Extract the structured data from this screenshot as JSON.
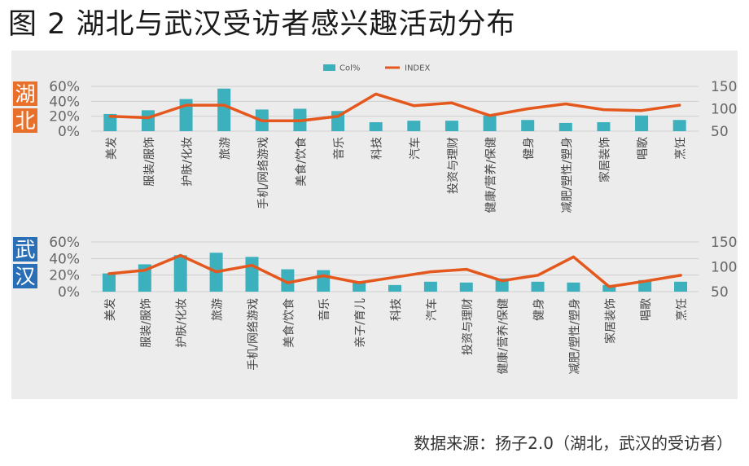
{
  "figure": {
    "title": "图 2 湖北与武汉受访者感兴趣活动分布",
    "source": "数据来源：扬子2.0（湖北，武汉的受访者）"
  },
  "colors": {
    "bar": "#3cb1bd",
    "line": "#e4581e",
    "hubei_tag": "#e8702a",
    "wuhan_tag": "#2a6fb5",
    "panel_bg": "#ececec"
  },
  "chart_data": [
    {
      "type": "bar",
      "region_label": "湖北",
      "legend": {
        "position": "top-center",
        "items": [
          "Col%",
          "INDEX"
        ]
      },
      "categories": [
        "美发",
        "服装/服饰",
        "护肤/化妆",
        "旅游",
        "手机/网络游戏",
        "美食/饮食",
        "音乐",
        "科技",
        "汽车",
        "投资与理财",
        "健康/营养/保健",
        "健身",
        "减肥/塑性/塑身",
        "家居装饰",
        "唱歌",
        "烹饪"
      ],
      "series": [
        {
          "name": "Col%",
          "type": "bar",
          "axis": "left",
          "values": [
            23,
            28,
            43,
            57,
            29,
            30,
            27,
            12,
            14,
            14,
            21,
            15,
            11,
            12,
            21,
            15
          ]
        },
        {
          "name": "INDEX",
          "type": "line",
          "axis": "right",
          "values": [
            83,
            80,
            108,
            108,
            73,
            73,
            83,
            133,
            107,
            113,
            85,
            100,
            111,
            98,
            96,
            108
          ]
        }
      ],
      "ylim": [
        0,
        60
      ],
      "y_ticks": [
        "0%",
        "20%",
        "40%",
        "60%"
      ],
      "y2lim": [
        50,
        150
      ],
      "y2_ticks": [
        "50",
        "100",
        "150"
      ],
      "grid": true
    },
    {
      "type": "bar",
      "region_label": "武汉",
      "categories": [
        "美发",
        "服装/服饰",
        "护肤/化妆",
        "旅游",
        "手机/网络游戏",
        "美食/饮食",
        "音乐",
        "亲子/育儿",
        "科技",
        "汽车",
        "投资与理财",
        "健康/营养/保健",
        "健身",
        "减肥/塑性/塑身",
        "家居装饰",
        "唱歌",
        "烹饪"
      ],
      "series": [
        {
          "name": "Col%",
          "type": "bar",
          "axis": "left",
          "values": [
            22,
            33,
            44,
            47,
            42,
            27,
            26,
            11,
            8,
            12,
            11,
            16,
            12,
            11,
            8,
            14,
            12
          ]
        },
        {
          "name": "INDEX",
          "type": "line",
          "axis": "right",
          "values": [
            86,
            93,
            123,
            90,
            103,
            68,
            82,
            68,
            79,
            90,
            95,
            72,
            83,
            120,
            60,
            71,
            83
          ]
        }
      ],
      "ylim": [
        0,
        60
      ],
      "y_ticks": [
        "0%",
        "20%",
        "40%",
        "60%"
      ],
      "y2lim": [
        50,
        150
      ],
      "y2_ticks": [
        "50",
        "100",
        "150"
      ],
      "grid": true
    }
  ]
}
